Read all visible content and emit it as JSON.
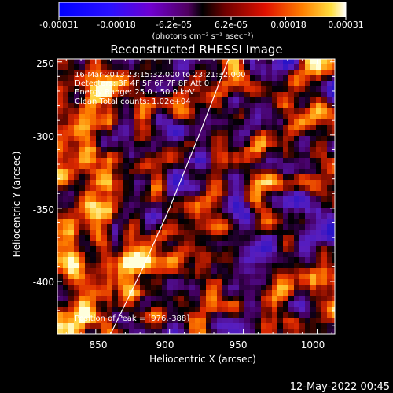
{
  "chart_data": {
    "type": "heatmap",
    "title": "Reconstructed RHESSI Image",
    "xlabel": "Heliocentric X (arcsec)",
    "ylabel": "Heliocentric Y (arcsec)",
    "xlim": [
      824,
      1012
    ],
    "ylim": [
      -436,
      -248
    ],
    "x_ticks": [
      "850",
      "900",
      "950",
      "1000"
    ],
    "x_tick_values": [
      850,
      900,
      950,
      1000
    ],
    "y_ticks": [
      "-250",
      "-300",
      "-350",
      "-400"
    ],
    "y_tick_values": [
      -250,
      -300,
      -350,
      -400
    ],
    "colorbar": {
      "range": [
        -0.00031,
        0.00031
      ],
      "tick_labels": [
        "-0.00031",
        "-0.00018",
        "-6.2e-05",
        "6.2e-05",
        "0.00018",
        "0.00031"
      ],
      "tick_values": [
        -0.00031,
        -0.00018,
        -6.2e-05,
        6.2e-05,
        0.00018,
        0.00031
      ],
      "unit_label": "(photons cm⁻² s⁻¹ asec⁻²)"
    },
    "annotations": {
      "time_range": "16-Mar-2013 23:15:32.000 to 23:21:32.000",
      "detectors": "Detectors: 3F 4F 5F 6F 7F 8F Att 0",
      "energy_range": "Energy Range: 25.0 - 50.0 keV",
      "clean_info": "Clean    Total counts: 1.02e+04",
      "peak_position": "Position of Peak = [976,-388]"
    },
    "limb_curve": {
      "x": [
        860,
        880,
        900,
        920,
        940
      ],
      "y": [
        -436,
        -395,
        -350,
        -300,
        -248
      ]
    },
    "colors": {
      "background": "#000000",
      "text": "#ffffff",
      "limb": "#ffffff"
    }
  },
  "footer": {
    "timestamp": "12-May-2022 00:45"
  }
}
